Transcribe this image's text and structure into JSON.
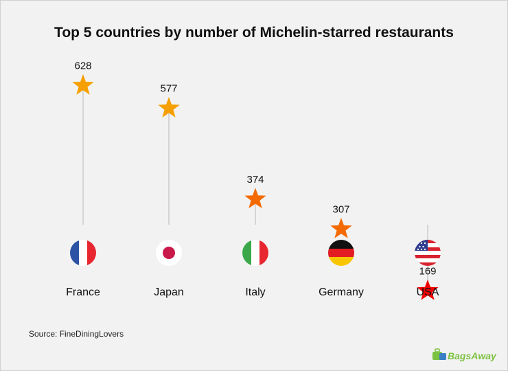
{
  "chart_data": {
    "type": "lollipop",
    "title": "Top 5 countries by number of Michelin-starred restaurants",
    "categories": [
      "France",
      "Japan",
      "Italy",
      "Germany",
      "USA"
    ],
    "values": [
      628,
      577,
      374,
      307,
      169
    ],
    "marker": "star",
    "marker_colors": [
      "#f5a000",
      "#f5a000",
      "#f46a00",
      "#f46a00",
      "#f00000"
    ],
    "category_icons": [
      "france-flag-icon",
      "japan-flag-icon",
      "italy-flag-icon",
      "germany-flag-icon",
      "usa-flag-icon"
    ],
    "stem_color": "#b8b8b8",
    "grid": false
  },
  "footer": {
    "source": "Source: FineDiningLovers",
    "logo_text": "BagsAway"
  }
}
